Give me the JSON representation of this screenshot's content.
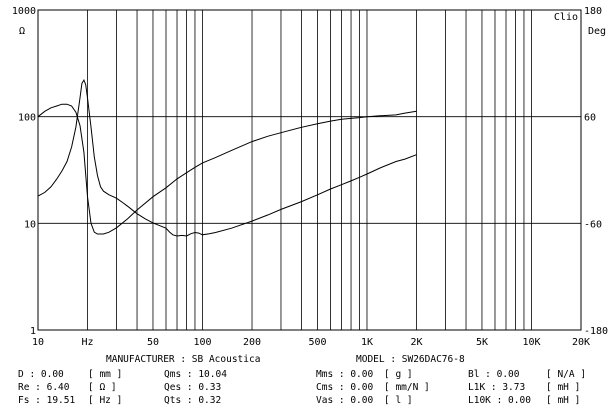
{
  "chart_data": {
    "type": "line",
    "title": "",
    "xlabel": "Hz",
    "ylabel_left": "Ω",
    "ylabel_right": "Deg",
    "brand": "Clio",
    "x_scale": "log",
    "xlim": [
      10,
      20000
    ],
    "ylim_left": [
      1,
      1000
    ],
    "ylim_right": [
      -180,
      180
    ],
    "x_ticks": [
      {
        "value": 10,
        "label": "10"
      },
      {
        "value": 20,
        "label": "Hz"
      },
      {
        "value": 50,
        "label": "50"
      },
      {
        "value": 100,
        "label": "100"
      },
      {
        "value": 200,
        "label": "200"
      },
      {
        "value": 500,
        "label": "500"
      },
      {
        "value": 1000,
        "label": "1K"
      },
      {
        "value": 2000,
        "label": "2K"
      },
      {
        "value": 5000,
        "label": "5K"
      },
      {
        "value": 10000,
        "label": "10K"
      },
      {
        "value": 20000,
        "label": "20K"
      }
    ],
    "y_ticks_left": [
      {
        "value": 1000,
        "label": "1000"
      },
      {
        "value": 100,
        "label": "100"
      },
      {
        "value": 10,
        "label": "10"
      },
      {
        "value": 1,
        "label": "1"
      }
    ],
    "y_ticks_right": [
      {
        "value": 180,
        "label": "180"
      },
      {
        "value": 60,
        "label": "60"
      },
      {
        "value": -60,
        "label": "-60"
      },
      {
        "value": -180,
        "label": "-180"
      }
    ],
    "series": [
      {
        "name": "Impedance",
        "axis": "left",
        "x": [
          10,
          11,
          12,
          13,
          14,
          15,
          16,
          17,
          18,
          18.5,
          19,
          19.5,
          20,
          21,
          22,
          23,
          24,
          25,
          27,
          30,
          33,
          36,
          40,
          45,
          50,
          55,
          60,
          63,
          66,
          70,
          75,
          80,
          85,
          90,
          95,
          100,
          110,
          120,
          150,
          200,
          250,
          300,
          400,
          500,
          600,
          700,
          800,
          900,
          1000,
          1200,
          1500,
          1700,
          2000
        ],
        "y": [
          18,
          19.5,
          22,
          26,
          31,
          38,
          52,
          80,
          150,
          205,
          220,
          200,
          150,
          80,
          42,
          28,
          22,
          20,
          18.5,
          17.2,
          15.5,
          14,
          12.3,
          11,
          10.1,
          9.5,
          9,
          8.3,
          7.8,
          7.6,
          7.7,
          7.6,
          8,
          8.2,
          8.1,
          7.8,
          8,
          8.2,
          9,
          10.5,
          12,
          13.5,
          16,
          18.5,
          21,
          23,
          25,
          27,
          29,
          33,
          38,
          40,
          44
        ]
      },
      {
        "name": "Phase",
        "axis": "right",
        "x": [
          10,
          11,
          12,
          13,
          14,
          15,
          16,
          17,
          18,
          19,
          20,
          21,
          22,
          23,
          25,
          27,
          30,
          35,
          40,
          50,
          60,
          70,
          80,
          90,
          100,
          120,
          150,
          200,
          250,
          300,
          400,
          500,
          600,
          700,
          800,
          900,
          1000,
          1200,
          1500,
          1700,
          2000
        ],
        "y": [
          60,
          66,
          70,
          72,
          74,
          74,
          72,
          65,
          50,
          20,
          -30,
          -60,
          -70,
          -72,
          -72,
          -70,
          -65,
          -55,
          -45,
          -30,
          -20,
          -10,
          -3,
          3,
          8,
          14,
          22,
          32,
          38,
          42,
          48,
          52,
          55,
          57,
          58,
          59,
          60,
          61,
          62,
          64,
          66
        ]
      }
    ]
  },
  "params": {
    "manufacturer_label": "MANUFACTURER : SB Acoustica",
    "model_label": "MODEL : SW26DAC76-8",
    "rows": [
      [
        "D : 0.00",
        "[ mm ]",
        "Qms : 10.04",
        "Mms : 0.00",
        "[ g ]",
        "Bl : 0.00",
        "[ N/A ]"
      ],
      [
        "Re : 6.40",
        "[ Ω ]",
        "Qes : 0.33",
        "Cms : 0.00",
        "[ mm/N ]",
        "L1K : 3.73",
        "[ mH ]"
      ],
      [
        "Fs : 19.51",
        "[ Hz ]",
        "Qts : 0.32",
        "Vas : 0.00",
        "[ l ]",
        "L10K : 0.00",
        "[ mH ]"
      ]
    ]
  }
}
